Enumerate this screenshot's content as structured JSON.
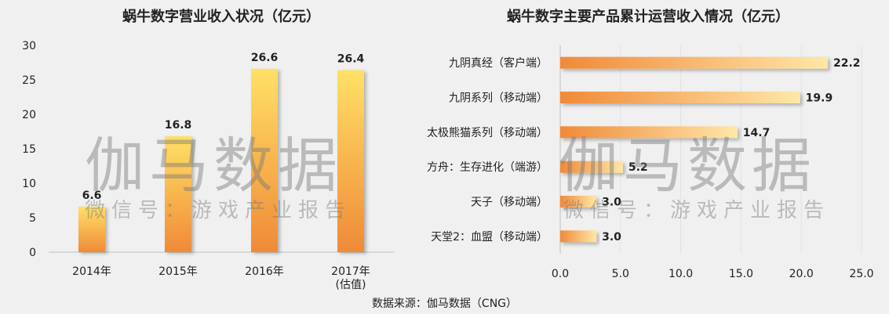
{
  "source_text": "数据来源：伽马数据（CNG）",
  "watermark": {
    "main": "伽马数据",
    "sub": "微信号：游戏产业报告"
  },
  "chart_data": [
    {
      "type": "bar",
      "title": "蜗牛数字营业收入状况（亿元）",
      "categories": [
        [
          "2014年"
        ],
        [
          "2015年"
        ],
        [
          "2016年"
        ],
        [
          "2017年",
          "(估值)"
        ]
      ],
      "values": [
        6.6,
        16.8,
        26.6,
        26.4
      ],
      "value_labels": [
        "6.6",
        "16.8",
        "26.6",
        "26.4"
      ],
      "ylim": [
        0,
        30
      ],
      "yticks": [
        "0",
        "5",
        "10",
        "15",
        "20",
        "25",
        "30"
      ],
      "colors": {
        "bar_top": "#ffe066",
        "bar_bottom": "#f08a38"
      },
      "grid": false
    },
    {
      "type": "bar",
      "orientation": "horizontal",
      "title": "蜗牛数字主要产品累计运营收入情况（亿元）",
      "categories": [
        "九阴真经（客户端）",
        "九阴系列（移动端）",
        "太极熊猫系列（移动端）",
        "方舟：生存进化（端游）",
        "天子（移动端）",
        "天堂2：血盟（移动端）"
      ],
      "values": [
        22.2,
        19.9,
        14.7,
        5.2,
        3.0,
        3.0
      ],
      "value_labels": [
        "22.2",
        "19.9",
        "14.7",
        "5.2",
        "3.0",
        "3.0"
      ],
      "xlim": [
        0,
        25
      ],
      "xticks": [
        "0.0",
        "5.0",
        "10.0",
        "15.0",
        "20.0",
        "25.0"
      ],
      "colors": {
        "bar_left": "#f08a38",
        "bar_right": "#ffe7a8"
      },
      "grid": true
    }
  ]
}
